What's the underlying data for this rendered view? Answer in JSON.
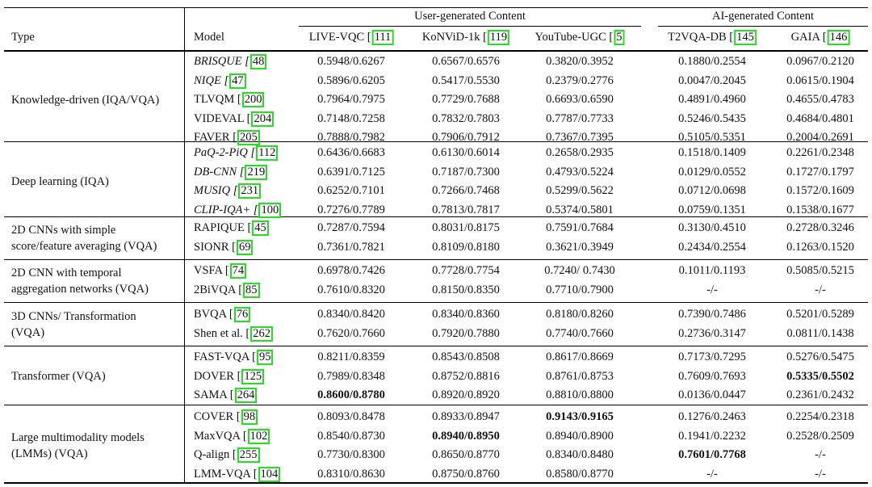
{
  "header": {
    "type_label": "Type",
    "model_label": "Model",
    "group_ugc": "User-generated Content",
    "group_ai": "AI-generated Content",
    "columns": [
      {
        "name": "LIVE-VQC [",
        "ref": "111"
      },
      {
        "name": "KoNViD-1k [",
        "ref": "119"
      },
      {
        "name": "YouTube-UGC [",
        "ref": "5"
      },
      {
        "name": "T2VQA-DB [",
        "ref": "145"
      },
      {
        "name": "GAIA [",
        "ref": "146"
      }
    ]
  },
  "groups": [
    {
      "type_lines": [
        "Knowledge-driven (IQA/VQA)"
      ],
      "rows": [
        {
          "model": "BRISQUE [",
          "ref": "48",
          "italic": true,
          "values": [
            "0.5948/0.6267",
            "0.6567/0.6576",
            "0.3820/0.3952",
            "0.1880/0.2554",
            "0.0967/0.2120"
          ],
          "bold": []
        },
        {
          "model": "NIQE [",
          "ref": "47",
          "italic": true,
          "values": [
            "0.5896/0.6205",
            "0.5417/0.5530",
            "0.2379/0.2776",
            "0.0047/0.2045",
            "0.0615/0.1904"
          ],
          "bold": []
        },
        {
          "model": "TLVQM [",
          "ref": "200",
          "italic": false,
          "values": [
            "0.7964/0.7975",
            "0.7729/0.7688",
            "0.6693/0.6590",
            "0.4891/0.4960",
            "0.4655/0.4783"
          ],
          "bold": []
        },
        {
          "model": "VIDEVAL [",
          "ref": "204",
          "italic": false,
          "values": [
            "0.7148/0.7258",
            "0.7832/0.7803",
            "0.7787/0.7733",
            "0.5246/0.5435",
            "0.4684/0.4801"
          ],
          "bold": []
        },
        {
          "model": "FAVER [",
          "ref": "205",
          "italic": false,
          "values": [
            "0.7888/0.7982",
            "0.7906/0.7912",
            "0.7367/0.7395",
            "0.5105/0.5351",
            "0.2004/0.2691"
          ],
          "bold": []
        }
      ]
    },
    {
      "type_lines": [
        "Deep learning (IQA)"
      ],
      "rows": [
        {
          "model": "PaQ-2-PiQ [",
          "ref": "112",
          "italic": true,
          "values": [
            "0.6436/0.6683",
            "0.6130/0.6014",
            "0.2658/0.2935",
            "0.1518/0.1409",
            "0.2261/0.2348"
          ],
          "bold": []
        },
        {
          "model": "DB-CNN [",
          "ref": "219",
          "italic": true,
          "values": [
            "0.6391/0.7125",
            "0.7187/0.7300",
            "0.4793/0.5224",
            "0.0129/0.0552",
            "0.1727/0.1797"
          ],
          "bold": []
        },
        {
          "model": "MUSIQ [",
          "ref": "231",
          "italic": true,
          "values": [
            "0.6252/0.7101",
            "0.7266/0.7468",
            "0.5299/0.5622",
            "0.0712/0.0698",
            "0.1572/0.1609"
          ],
          "bold": []
        },
        {
          "model": "CLIP-IQA+ [",
          "ref": "100",
          "italic": true,
          "values": [
            "0.7276/0.7789",
            "0.7813/0.7817",
            "0.5374/0.5801",
            "0.0759/0.1351",
            "0.1538/0.1677"
          ],
          "bold": []
        }
      ]
    },
    {
      "type_lines": [
        "2D CNNs with simple",
        "score/feature averaging (VQA)"
      ],
      "rows": [
        {
          "model": "RAPIQUE [",
          "ref": "45",
          "italic": false,
          "values": [
            "0.7287/0.7594",
            "0.8031/0.8175",
            "0.7591/0.7684",
            "0.3130/0.4510",
            "0.2728/0.3246"
          ],
          "bold": []
        },
        {
          "model": "SIONR [",
          "ref": "69",
          "italic": false,
          "values": [
            "0.7361/0.7821",
            "0.8109/0.8180",
            "0.3621/0.3949",
            "0.2434/0.2554",
            "0.1263/0.1520"
          ],
          "bold": []
        }
      ]
    },
    {
      "type_lines": [
        "2D CNN with temporal",
        "aggregation networks (VQA)"
      ],
      "rows": [
        {
          "model": "VSFA [",
          "ref": "74",
          "italic": false,
          "values": [
            "0.6978/0.7426",
            "0.7728/0.7754",
            "0.7240/ 0.7430",
            "0.1011/0.1193",
            "0.5085/0.5215"
          ],
          "bold": []
        },
        {
          "model": "2BiVQA [",
          "ref": "85",
          "italic": false,
          "values": [
            "0.7610/0.8320",
            "0.8150/0.8350",
            "0.7710/0.7900",
            "-/-",
            "-/-"
          ],
          "bold": []
        }
      ]
    },
    {
      "type_lines": [
        "3D CNNs/ Transformation",
        "(VQA)"
      ],
      "rows": [
        {
          "model": "BVQA [",
          "ref": "76",
          "italic": false,
          "values": [
            "0.8340/0.8420",
            "0.8340/0.8360",
            "0.8180/0.8260",
            "0.7390/0.7486",
            "0.5201/0.5289"
          ],
          "bold": []
        },
        {
          "model": "Shen et al. [",
          "ref": "262",
          "italic": false,
          "values": [
            "0.7620/0.7660",
            "0.7920/0.7880",
            "0.7740/0.7660",
            "0.2736/0.3147",
            "0.0811/0.1438"
          ],
          "bold": []
        }
      ]
    },
    {
      "type_lines": [
        "Transformer (VQA)"
      ],
      "rows": [
        {
          "model": "FAST-VQA [",
          "ref": "95",
          "italic": false,
          "values": [
            "0.8211/0.8359",
            "0.8543/0.8508",
            "0.8617/0.8669",
            "0.7173/0.7295",
            "0.5276/0.5475"
          ],
          "bold": []
        },
        {
          "model": "DOVER [",
          "ref": "125",
          "italic": false,
          "values": [
            "0.7989/0.8348",
            "0.8752/0.8816",
            "0.8761/0.8753",
            "0.7609/0.7693",
            "0.5335/0.5502"
          ],
          "bold": [
            4
          ]
        },
        {
          "model": "SAMA [",
          "ref": "264",
          "italic": false,
          "values": [
            "0.8600/0.8780",
            "0.8920/0.8920",
            "0.8810/0.8800",
            "0.0136/0.0447",
            "0.2361/0.2432"
          ],
          "bold": [
            0
          ]
        }
      ]
    },
    {
      "type_lines": [
        "Large multimodality models",
        "(LMMs) (VQA)"
      ],
      "rows": [
        {
          "model": "COVER [",
          "ref": "98",
          "italic": false,
          "values": [
            "0.8093/0.8478",
            "0.8933/0.8947",
            "0.9143/0.9165",
            "0.1276/0.2463",
            "0.2254/0.2318"
          ],
          "bold": [
            2
          ]
        },
        {
          "model": "MaxVQA [",
          "ref": "102",
          "italic": false,
          "values": [
            "0.8540/0.8730",
            "0.8940/0.8950",
            "0.8940/0.8900",
            "0.1941/0.2232",
            "0.2528/0.2509"
          ],
          "bold": [
            1
          ]
        },
        {
          "model": "Q-align [",
          "ref": "255",
          "italic": false,
          "values": [
            "0.7730/0.8300",
            "0.8650/0.8770",
            "0.8340/0.8480",
            "0.7601/0.7768",
            "-/-"
          ],
          "bold": [
            3
          ]
        },
        {
          "model": "LMM-VQA [",
          "ref": "104",
          "italic": false,
          "values": [
            "0.8310/0.8630",
            "0.8750/0.8760",
            "0.8580/0.8770",
            "-/-",
            "-/-"
          ],
          "bold": []
        }
      ]
    }
  ]
}
